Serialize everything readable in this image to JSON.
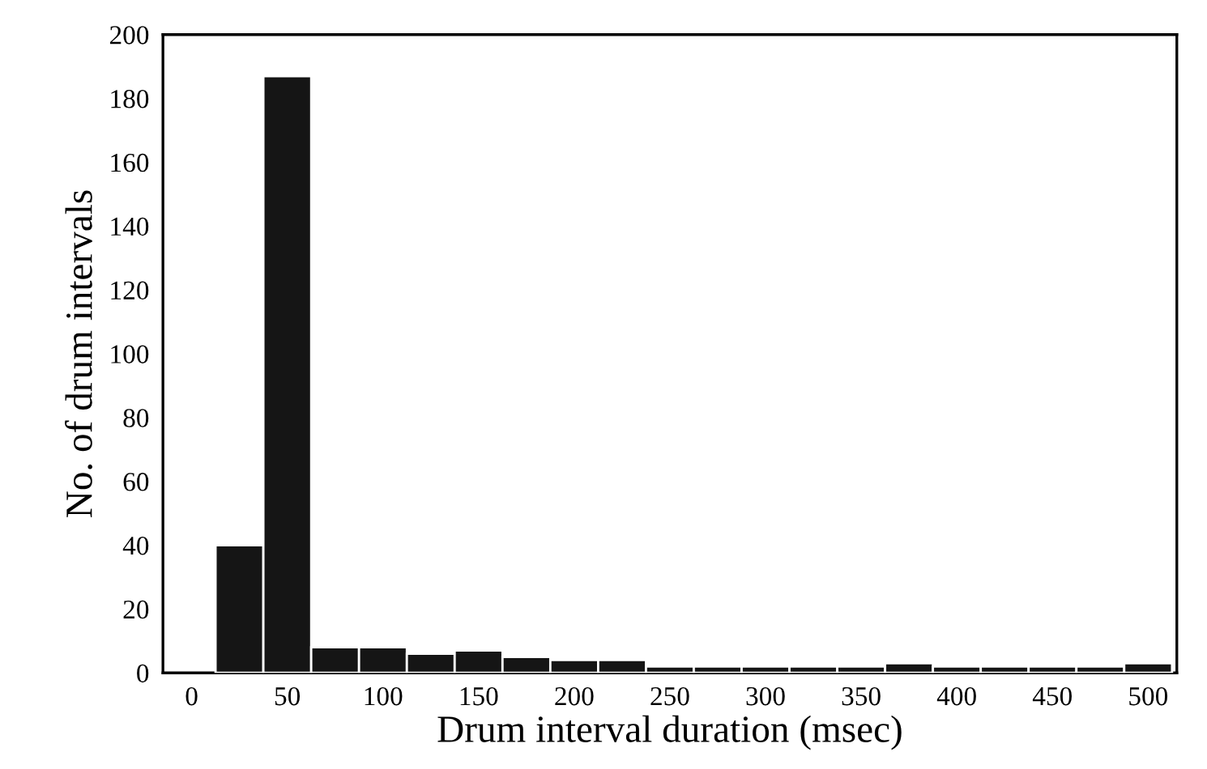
{
  "chart_data": {
    "type": "histogram",
    "xlabel": "Drum interval duration (msec)",
    "ylabel": "No. of drum intervals",
    "bins": [
      12.5,
      37.5,
      62.5,
      87.5,
      112.5,
      137.5,
      162.5,
      187.5,
      212.5,
      237.5,
      262.5,
      287.5,
      312.5,
      337.5,
      362.5,
      387.5,
      412.5,
      437.5,
      462.5,
      487.5,
      512.5
    ],
    "values": [
      40,
      187,
      8,
      8,
      6,
      7,
      5,
      4,
      4,
      2,
      2,
      2,
      2,
      2,
      3,
      2,
      2,
      2,
      2,
      3
    ],
    "color": "#151515",
    "xlim": [
      -15,
      515
    ],
    "ylim": [
      0,
      200
    ],
    "xticks": [
      0,
      50,
      100,
      150,
      200,
      250,
      300,
      350,
      400,
      450,
      500
    ],
    "yticks": [
      0,
      20,
      40,
      60,
      80,
      100,
      120,
      140,
      160,
      180,
      200
    ],
    "grid": false
  }
}
